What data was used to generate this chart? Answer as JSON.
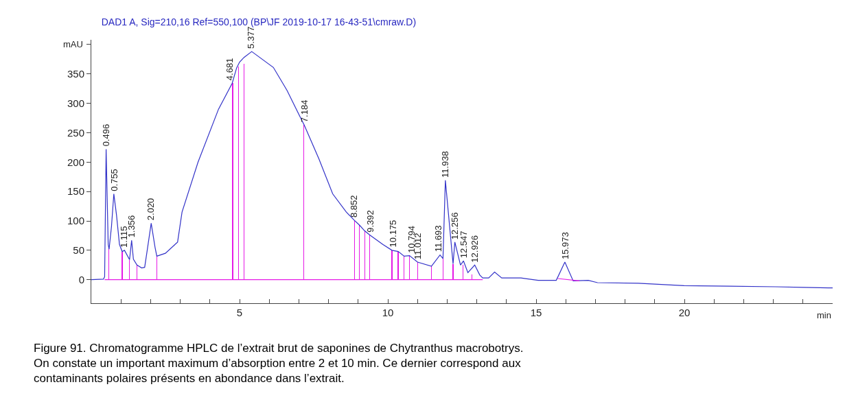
{
  "chart_data": {
    "type": "line",
    "title": "DAD1 A, Sig=210,16 Ref=550,100 (BP\\JF 2019-10-17 16-43-51\\cmraw.D)",
    "xlabel": "min",
    "ylabel": "mAU",
    "xlim": [
      0,
      25
    ],
    "ylim": [
      -40,
      408
    ],
    "xticks": [
      {
        "value": 1,
        "label": null
      },
      {
        "value": 2,
        "label": null
      },
      {
        "value": 3,
        "label": null
      },
      {
        "value": 4,
        "label": null
      },
      5,
      {
        "value": 6,
        "label": null
      },
      {
        "value": 7,
        "label": null
      },
      {
        "value": 8,
        "label": null
      },
      {
        "value": 9,
        "label": null
      },
      10,
      {
        "value": 11,
        "label": null
      },
      {
        "value": 12,
        "label": null
      },
      {
        "value": 13,
        "label": null
      },
      {
        "value": 14,
        "label": null
      },
      15,
      {
        "value": 16,
        "label": null
      },
      {
        "value": 17,
        "label": null
      },
      {
        "value": 18,
        "label": null
      },
      {
        "value": 19,
        "label": null
      },
      20,
      {
        "value": 21,
        "label": null
      },
      {
        "value": 22,
        "label": null
      },
      {
        "value": 23,
        "label": null
      },
      {
        "value": 24,
        "label": null
      }
    ],
    "yticks": [
      0,
      50,
      100,
      150,
      200,
      250,
      300,
      350,
      {
        "value": 400,
        "label": null
      }
    ],
    "grid": false,
    "series": [
      {
        "color": "#3232c8",
        "x": [
          0,
          0.41,
          0.45,
          0.5,
          0.57,
          0.6,
          0.68,
          0.76,
          0.85,
          0.95,
          1.04,
          1.12,
          1.29,
          1.36,
          1.42,
          1.54,
          1.7,
          1.8,
          1.9,
          2.02,
          2.15,
          2.21,
          2.5,
          2.91,
          3.06,
          3.6,
          4.29,
          4.75,
          4.9,
          5.0,
          5.15,
          5.41,
          6.14,
          6.6,
          7.06,
          7.18,
          7.68,
          8.14,
          8.6,
          8.87,
          9.04,
          9.22,
          9.39,
          9.83,
          10.14,
          10.35,
          10.55,
          10.73,
          11.0,
          11.47,
          11.76,
          11.86,
          11.94,
          12.2,
          12.26,
          12.45,
          12.55,
          12.7,
          12.93,
          13.1,
          13.2,
          13.4,
          13.6,
          13.84,
          14.49,
          15.07,
          15.68,
          15.97,
          16.25,
          16.76,
          17.07,
          18.45,
          19.99,
          21.5,
          23.07,
          24.0,
          24.85,
          25
        ],
        "values": [
          0,
          1,
          5,
          222,
          60,
          52,
          90,
          146,
          110,
          60,
          48,
          50,
          34,
          67,
          35,
          25,
          20,
          21,
          55,
          96,
          55,
          40,
          45,
          64,
          115,
          200,
          290,
          334,
          360,
          370,
          378,
          388,
          361,
          322,
          275,
          263,
          205,
          146,
          115,
          101,
          93,
          83,
          76,
          60,
          50,
          48,
          40,
          41,
          30,
          23,
          42,
          36,
          169,
          27,
          64,
          25,
          32,
          12,
          25,
          8,
          3,
          3,
          13,
          3,
          3,
          -1,
          -1,
          30,
          -2,
          -1,
          -5,
          -6,
          -10,
          -11,
          -12,
          -13,
          -14,
          -14
        ]
      },
      {
        "type": "bar",
        "color": "#e619e6",
        "x": [
          0.59,
          1.04,
          1.29,
          1.54,
          2.21,
          4.77,
          4.97,
          5.15,
          7.16,
          8.87,
          9.04,
          9.22,
          9.39,
          10.14,
          10.35,
          10.55,
          10.73,
          11.0,
          11.47,
          11.86,
          12.2,
          12.53,
          12.84
        ],
        "values": [
          54,
          48,
          34,
          25,
          40,
          335,
          363,
          367,
          263,
          101,
          93,
          83,
          76,
          50,
          48,
          40,
          41,
          30,
          23,
          36,
          27,
          25,
          9
        ]
      },
      {
        "type": "line",
        "color": "#e619e6",
        "x": [
          0.45,
          13.2,
          13.3,
          15.73,
          16.46
        ],
        "values": [
          0,
          0,
          null,
          2,
          -2
        ]
      }
    ],
    "annotations": [
      {
        "text": "0.496",
        "x": 0.496,
        "y": 222
      },
      {
        "text": "0.755",
        "x": 0.755,
        "y": 146
      },
      {
        "text": "1.115",
        "x": 1.115,
        "y": 50
      },
      {
        "text": "1.356",
        "x": 1.356,
        "y": 67
      },
      {
        "text": "2.020",
        "x": 2.02,
        "y": 96
      },
      {
        "text": "4.681",
        "x": 4.681,
        "y": 334
      },
      {
        "text": "5.377",
        "x": 5.377,
        "y": 388
      },
      {
        "text": "7.184",
        "x": 7.184,
        "y": 263
      },
      {
        "text": "8.852",
        "x": 8.852,
        "y": 101
      },
      {
        "text": "9.392",
        "x": 9.392,
        "y": 76
      },
      {
        "text": "10.175",
        "x": 10.175,
        "y": 50
      },
      {
        "text": "10.794",
        "x": 10.794,
        "y": 41
      },
      {
        "text": "11.012",
        "x": 11.012,
        "y": 30
      },
      {
        "text": "11.693",
        "x": 11.693,
        "y": 42
      },
      {
        "text": "11.938",
        "x": 11.938,
        "y": 169
      },
      {
        "text": "12.256",
        "x": 12.256,
        "y": 64
      },
      {
        "text": "12.547",
        "x": 12.547,
        "y": 32
      },
      {
        "text": "12.926",
        "x": 12.926,
        "y": 25
      },
      {
        "text": "15.973",
        "x": 15.973,
        "y": 30
      },
      "Figure 91. Chromatogramme HPLC de l’extrait brut de saponines de Chytranthus macrobotrys.\nOn constate un important maximum d’absorption entre 2 et 10 min. Ce dernier correspond aux\ncontaminants polaires présents en abondance dans l’extrait."
    ]
  }
}
